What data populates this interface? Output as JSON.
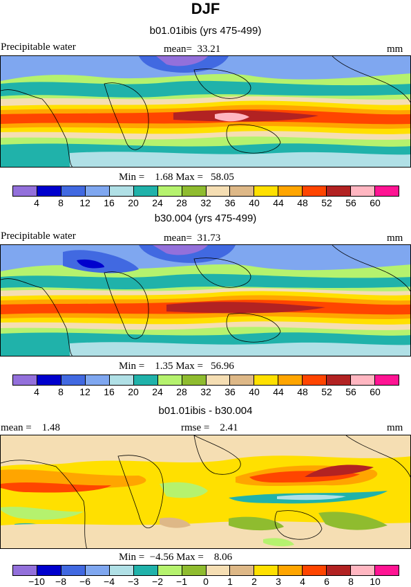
{
  "title": "DJF",
  "panels": [
    {
      "subtitle": "b01.01ibis (yrs 475-499)",
      "left_label": "Precipitable water",
      "center_label": "mean=  33.21",
      "right_label": "mm",
      "minmax": "Min =    1.68 Max =   58.05",
      "palette": [
        "#9370db",
        "#0000cd",
        "#4169e1",
        "#7fa7f0",
        "#b0e0e6",
        "#20b2aa",
        "#b5f26e",
        "#8fbc2f",
        "#f5deb3",
        "#deb887",
        "#ffe000",
        "#ffa500",
        "#ff4500",
        "#b22222",
        "#ffb6c1",
        "#ff1493"
      ],
      "ticks": [
        "4",
        "8",
        "12",
        "16",
        "20",
        "24",
        "28",
        "32",
        "36",
        "40",
        "44",
        "48",
        "52",
        "56",
        "60"
      ]
    },
    {
      "subtitle": "b30.004 (yrs 475-499)",
      "left_label": "Precipitable water",
      "center_label": "mean=  31.73",
      "right_label": "mm",
      "minmax": "Min =    1.35 Max =   56.96",
      "palette": [
        "#9370db",
        "#0000cd",
        "#4169e1",
        "#7fa7f0",
        "#b0e0e6",
        "#20b2aa",
        "#b5f26e",
        "#8fbc2f",
        "#f5deb3",
        "#deb887",
        "#ffe000",
        "#ffa500",
        "#ff4500",
        "#b22222",
        "#ffb6c1",
        "#ff1493"
      ],
      "ticks": [
        "4",
        "8",
        "12",
        "16",
        "20",
        "24",
        "28",
        "32",
        "36",
        "40",
        "44",
        "48",
        "52",
        "56",
        "60"
      ]
    },
    {
      "subtitle": "b01.01ibis - b30.004",
      "left_label": "mean =    1.48",
      "center_label": "rmse =    2.41",
      "right_label": "mm",
      "minmax": "Min =  −4.56 Max =    8.06",
      "palette": [
        "#9370db",
        "#0000cd",
        "#4169e1",
        "#7fa7f0",
        "#b0e0e6",
        "#20b2aa",
        "#b5f26e",
        "#8fbc2f",
        "#f5deb3",
        "#deb887",
        "#ffe000",
        "#ffa500",
        "#ff4500",
        "#b22222",
        "#ffb6c1",
        "#ff1493"
      ],
      "ticks": [
        "−10",
        "−8",
        "−6",
        "−4",
        "−3",
        "−2",
        "−1",
        "0",
        "1",
        "2",
        "3",
        "4",
        "6",
        "8",
        "10"
      ]
    }
  ]
}
